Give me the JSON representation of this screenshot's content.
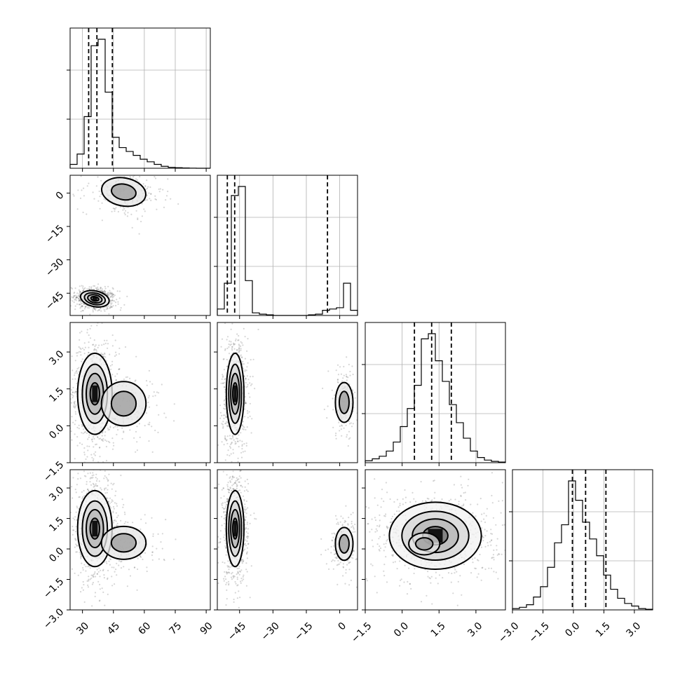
{
  "chart_data": {
    "type": "corner",
    "params": [
      {
        "lim": [
          24,
          92
        ],
        "ticks": [
          30,
          45,
          60,
          75,
          90
        ],
        "tick_labels": [
          "30",
          "45",
          "60",
          "75",
          "90"
        ]
      },
      {
        "lim": [
          -55,
          8
        ],
        "ticks": [
          -45,
          -30,
          -15,
          0
        ],
        "tick_labels": [
          "−45",
          "−30",
          "−15",
          "0"
        ]
      },
      {
        "lim": [
          -1.5,
          4.2
        ],
        "ticks": [
          -1.5,
          0.0,
          1.5,
          3.0
        ],
        "tick_labels": [
          "−1.5",
          "0.0",
          "1.5",
          "3.0"
        ]
      },
      {
        "lim": [
          -3.0,
          3.9
        ],
        "ticks": [
          -3.0,
          -1.5,
          0.0,
          1.5,
          3.0
        ],
        "tick_labels": [
          "−3.0",
          "−1.5",
          "0.0",
          "1.5",
          "3.0"
        ]
      }
    ],
    "histograms": [
      {
        "edges": [
          24,
          27.4,
          30.8,
          34.2,
          37.6,
          41,
          44.4,
          47.8,
          51.2,
          54.6,
          58,
          61.4,
          64.8,
          68.2,
          71.6,
          75,
          78.4,
          81.8,
          85.2,
          88.6,
          92
        ],
        "counts": [
          0.03,
          0.11,
          0.4,
          0.95,
          1.0,
          0.59,
          0.24,
          0.16,
          0.13,
          0.1,
          0.07,
          0.05,
          0.03,
          0.015,
          0.007,
          0.004,
          0.002,
          0.001,
          0.0,
          0.0
        ],
        "quantiles": [
          33,
          37,
          44.5
        ]
      },
      {
        "edges": [
          -55,
          -51.85,
          -48.7,
          -45.55,
          -42.4,
          -39.25,
          -36.1,
          -32.95,
          -29.8,
          -26.65,
          -23.5,
          -20.35,
          -17.2,
          -14.05,
          -10.9,
          -7.75,
          -4.6,
          -1.45,
          1.7,
          4.85,
          8
        ],
        "counts": [
          0.05,
          0.25,
          0.93,
          1.0,
          0.27,
          0.02,
          0.01,
          0.005,
          0.0,
          0.0,
          0.0,
          0.0,
          0.0,
          0.005,
          0.01,
          0.04,
          0.05,
          0.06,
          0.25,
          0.04
        ],
        "quantiles": [
          -50.5,
          -47.2,
          -5.5
        ]
      },
      {
        "edges": [
          -1.5,
          -1.215,
          -0.93,
          -0.645,
          -0.36,
          -0.075,
          0.21,
          0.495,
          0.78,
          1.065,
          1.35,
          1.635,
          1.92,
          2.205,
          2.49,
          2.775,
          3.06,
          3.345,
          3.63,
          3.915,
          4.2
        ],
        "counts": [
          0.015,
          0.03,
          0.05,
          0.09,
          0.16,
          0.28,
          0.42,
          0.6,
          0.96,
          1.0,
          0.79,
          0.63,
          0.45,
          0.31,
          0.19,
          0.09,
          0.04,
          0.02,
          0.01,
          0.005
        ],
        "quantiles": [
          0.5,
          1.2,
          2.0
        ]
      },
      {
        "edges": [
          -3.0,
          -2.655,
          -2.31,
          -1.965,
          -1.62,
          -1.275,
          -0.93,
          -0.585,
          -0.24,
          0.105,
          0.45,
          0.795,
          1.14,
          1.485,
          1.83,
          2.175,
          2.52,
          2.865,
          3.21,
          3.555,
          3.9
        ],
        "counts": [
          0.01,
          0.02,
          0.04,
          0.1,
          0.18,
          0.33,
          0.52,
          0.66,
          1.0,
          0.85,
          0.68,
          0.55,
          0.42,
          0.27,
          0.16,
          0.09,
          0.05,
          0.03,
          0.01,
          0.005
        ],
        "quantiles": [
          -0.05,
          0.6,
          1.6
        ]
      }
    ],
    "pairs": [
      {
        "x": 0,
        "y": 1,
        "modes": [
          {
            "cx": 36,
            "cy": -47.5,
            "sx": 3.2,
            "sy": 1.6,
            "rot": -0.35,
            "w": 0.7
          },
          {
            "cx": 50,
            "cy": 0.5,
            "sx": 6,
            "sy": 3.5,
            "rot": -0.3,
            "w": 0.3
          }
        ]
      },
      {
        "x": 0,
        "y": 2,
        "modes": [
          {
            "cx": 36,
            "cy": 1.3,
            "sx": 3.8,
            "sy": 0.75,
            "rot": 0.0,
            "w": 0.82
          },
          {
            "cx": 50,
            "cy": 0.9,
            "sx": 6,
            "sy": 0.5,
            "rot": 0.0,
            "w": 0.18
          }
        ]
      },
      {
        "x": 1,
        "y": 2,
        "modes": [
          {
            "cx": -47,
            "cy": 1.3,
            "sx": 1.8,
            "sy": 0.75,
            "rot": 0.0,
            "w": 0.8
          },
          {
            "cx": 2,
            "cy": 0.95,
            "sx": 2.2,
            "sy": 0.45,
            "rot": 0.0,
            "w": 0.2
          }
        ]
      },
      {
        "x": 0,
        "y": 3,
        "modes": [
          {
            "cx": 36,
            "cy": 1.0,
            "sx": 3.8,
            "sy": 0.85,
            "rot": 0.0,
            "w": 0.8
          },
          {
            "cx": 50,
            "cy": 0.3,
            "sx": 6,
            "sy": 0.45,
            "rot": 0.0,
            "w": 0.2
          }
        ]
      },
      {
        "x": 1,
        "y": 3,
        "modes": [
          {
            "cx": -47,
            "cy": 1.0,
            "sx": 1.8,
            "sy": 0.85,
            "rot": 0.0,
            "w": 0.8
          },
          {
            "cx": 2,
            "cy": 0.25,
            "sx": 2.2,
            "sy": 0.45,
            "rot": 0.0,
            "w": 0.2
          }
        ]
      },
      {
        "x": 2,
        "y": 3,
        "modes": [
          {
            "cx": 1.35,
            "cy": 0.65,
            "sx": 0.85,
            "sy": 0.75,
            "rot": 0.0,
            "w": 0.8
          },
          {
            "cx": 0.9,
            "cy": 0.25,
            "sx": 0.35,
            "sy": 0.3,
            "rot": 0.0,
            "w": 0.2
          }
        ]
      }
    ],
    "grid": true
  }
}
